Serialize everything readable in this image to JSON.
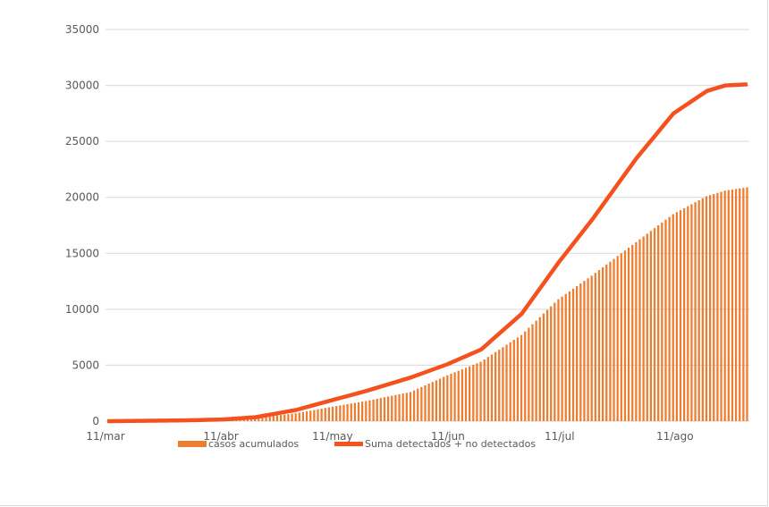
{
  "chart_data": {
    "type": "bar",
    "title": "",
    "xlabel": "",
    "ylabel": "",
    "ylim": [
      0,
      35000
    ],
    "yticks": [
      0,
      5000,
      10000,
      15000,
      20000,
      25000,
      30000,
      35000
    ],
    "grid": true,
    "legend_position": "bottom",
    "x_tick_labels": [
      "11/mar",
      "11/abr",
      "11/may",
      "11/jun",
      "11/jul",
      "11/ago"
    ],
    "x_start": "2020-03-11",
    "x_end": "2020-08-31",
    "colors": {
      "bars": "#ed7d31",
      "line": "#f4511e"
    },
    "series": [
      {
        "name": "casos acumulados",
        "type": "bar",
        "points": [
          [
            "2020-03-11",
            0
          ],
          [
            "2020-04-01",
            70
          ],
          [
            "2020-04-11",
            150
          ],
          [
            "2020-04-20",
            300
          ],
          [
            "2020-05-01",
            700
          ],
          [
            "2020-05-11",
            1300
          ],
          [
            "2020-05-20",
            1800
          ],
          [
            "2020-06-01",
            2600
          ],
          [
            "2020-06-11",
            4100
          ],
          [
            "2020-06-20",
            5300
          ],
          [
            "2020-07-01",
            7700
          ],
          [
            "2020-07-11",
            10900
          ],
          [
            "2020-07-20",
            13000
          ],
          [
            "2020-08-01",
            16000
          ],
          [
            "2020-08-11",
            18500
          ],
          [
            "2020-08-20",
            20100
          ],
          [
            "2020-08-25",
            20600
          ],
          [
            "2020-08-31",
            20900
          ]
        ]
      },
      {
        "name": "Suma detectados + no detectados",
        "type": "line",
        "points": [
          [
            "2020-03-11",
            0
          ],
          [
            "2020-04-01",
            70
          ],
          [
            "2020-04-11",
            150
          ],
          [
            "2020-04-20",
            350
          ],
          [
            "2020-05-01",
            1000
          ],
          [
            "2020-05-11",
            1900
          ],
          [
            "2020-05-20",
            2700
          ],
          [
            "2020-06-01",
            3900
          ],
          [
            "2020-06-11",
            5100
          ],
          [
            "2020-06-20",
            6400
          ],
          [
            "2020-07-01",
            9600
          ],
          [
            "2020-07-11",
            14200
          ],
          [
            "2020-07-20",
            18000
          ],
          [
            "2020-08-01",
            23500
          ],
          [
            "2020-08-11",
            27500
          ],
          [
            "2020-08-20",
            29500
          ],
          [
            "2020-08-25",
            30000
          ],
          [
            "2020-08-31",
            30100
          ]
        ]
      }
    ]
  }
}
